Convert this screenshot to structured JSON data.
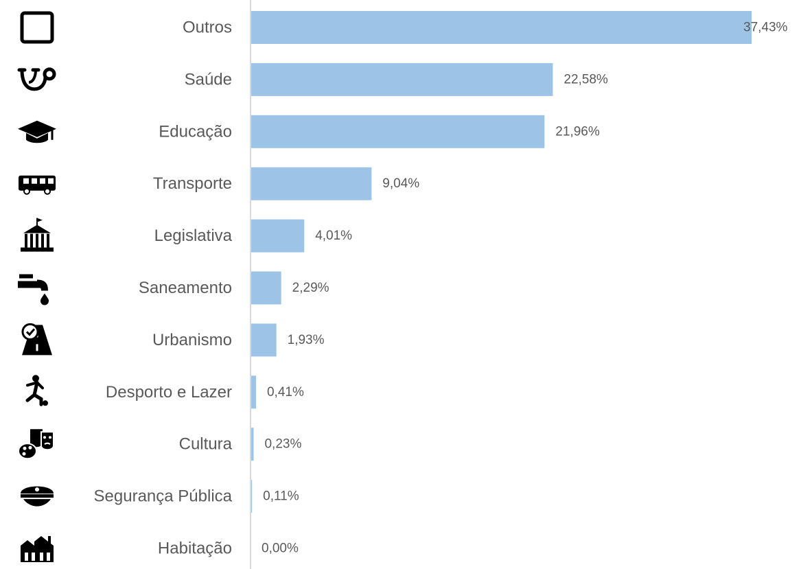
{
  "chart_data": {
    "type": "bar",
    "orientation": "horizontal",
    "categories": [
      "Outros",
      "Saúde",
      "Educação",
      "Transporte",
      "Legislativa",
      "Saneamento",
      "Urbanismo",
      "Desporto e Lazer",
      "Cultura",
      "Segurança Pública",
      "Habitação"
    ],
    "values": [
      37.43,
      22.58,
      21.96,
      9.04,
      4.01,
      2.29,
      1.93,
      0.41,
      0.23,
      0.11,
      0.0
    ],
    "value_labels": [
      "37,43%",
      "22,58%",
      "21,96%",
      "9,04%",
      "4,01%",
      "2,29%",
      "1,93%",
      "0,41%",
      "0,23%",
      "0,11%",
      "0,00%"
    ],
    "icons": [
      "square-outline-icon",
      "stethoscope-icon",
      "graduation-cap-icon",
      "bus-icon",
      "government-building-icon",
      "water-faucet-icon",
      "road-check-icon",
      "soccer-player-icon",
      "theater-masks-palette-icon",
      "police-cap-icon",
      "houses-icon"
    ],
    "xlim": [
      0,
      37.43
    ],
    "unit": "%",
    "grid": false,
    "legend": "none",
    "bar_color": "#9DC3E6",
    "axis_color": "#D9D9D9",
    "label_color": "#595959",
    "icon_color": "#000000"
  }
}
